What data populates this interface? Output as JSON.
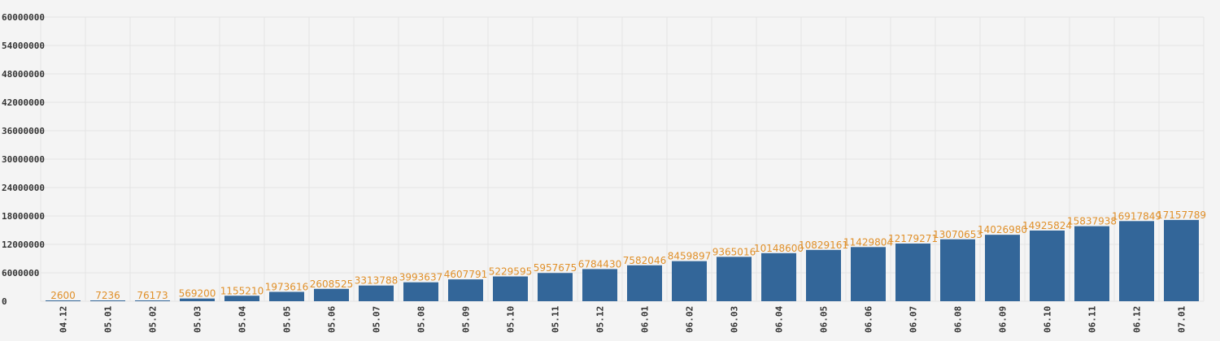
{
  "chart_data": {
    "type": "bar",
    "title": "",
    "xlabel": "",
    "ylabel": "",
    "categories": [
      "04.12",
      "05.01",
      "05.02",
      "05.03",
      "05.04",
      "05.05",
      "05.06",
      "05.07",
      "05.08",
      "05.09",
      "05.10",
      "05.11",
      "05.12",
      "06.01",
      "06.02",
      "06.03",
      "06.04",
      "06.05",
      "06.06",
      "06.07",
      "06.08",
      "06.09",
      "06.10",
      "06.11",
      "06.12",
      "07.01"
    ],
    "values": [
      2600,
      7236,
      76173,
      569200,
      1155210,
      1973616,
      2608525,
      3313788,
      3993637,
      4607791,
      5229595,
      5957675,
      6784430,
      7582046,
      8459897,
      9365016,
      10148600,
      10829161,
      11429804,
      12179271,
      13070653,
      14026980,
      14925824,
      15837938,
      16917849,
      17157789
    ],
    "data_labels": [
      "2600",
      "7236",
      "76173",
      "569200",
      "1155210",
      "1973616",
      "2608525",
      "3313788",
      "3993637",
      "4607791",
      "5229595",
      "5957675",
      "6784430",
      "7582046",
      "8459897",
      "9365016",
      "10148600",
      "10829161",
      "11429804",
      "12179271",
      "13070653",
      "14026980",
      "14925824",
      "15837938",
      "16917849",
      "17157789"
    ],
    "ylim": [
      0,
      60000000
    ],
    "yticks": [
      0,
      6000000,
      12000000,
      18000000,
      24000000,
      30000000,
      36000000,
      42000000,
      48000000,
      54000000,
      60000000
    ],
    "ytick_labels": [
      "0",
      "6000000",
      "12000000",
      "18000000",
      "24000000",
      "30000000",
      "36000000",
      "42000000",
      "48000000",
      "54000000",
      "60000000"
    ],
    "grid": true,
    "legend": "none",
    "colors": {
      "bar": "#336699",
      "data_label": "#e0902a",
      "background": "#f4f4f4",
      "grid": "#e4e4e4",
      "tick_text": "#333333"
    }
  }
}
